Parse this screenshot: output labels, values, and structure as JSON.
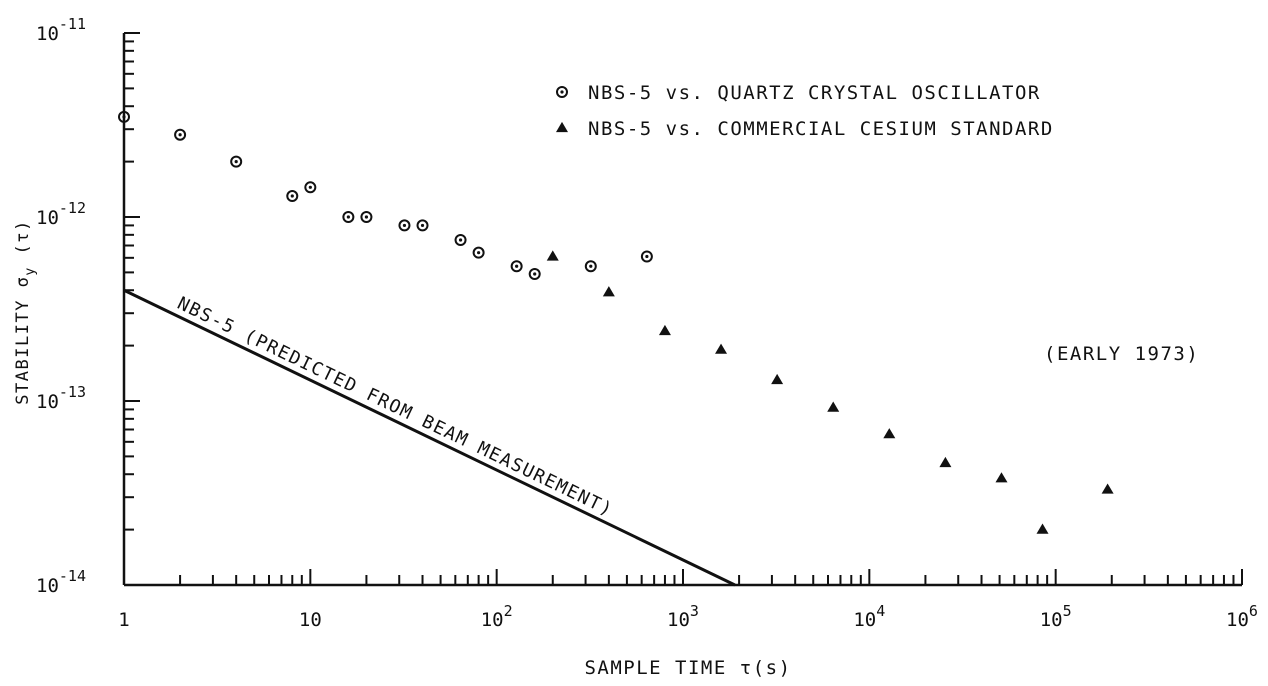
{
  "chart_data": {
    "type": "scatter",
    "title": "",
    "xlabel": "SAMPLE TIME τ(s)",
    "ylabel": "STABILITY σ",
    "ylabel_sub": "y",
    "ylabel_tail": " (τ)",
    "x_scale": "log",
    "y_scale": "log",
    "xlim": [
      1,
      1000000
    ],
    "ylim": [
      1e-14,
      1e-11
    ],
    "grid": false,
    "legend_position": "top-right",
    "x_tick_labels": [
      {
        "base": "1",
        "exp": ""
      },
      {
        "base": "10",
        "exp": ""
      },
      {
        "base": "10",
        "exp": "2"
      },
      {
        "base": "10",
        "exp": "3"
      },
      {
        "base": "10",
        "exp": "4"
      },
      {
        "base": "10",
        "exp": "5"
      },
      {
        "base": "10",
        "exp": "6"
      }
    ],
    "y_tick_labels": [
      {
        "base": "10",
        "exp": "-14"
      },
      {
        "base": "10",
        "exp": "-13"
      },
      {
        "base": "10",
        "exp": "-12"
      },
      {
        "base": "10",
        "exp": "-11"
      }
    ],
    "annotations": {
      "date_note": "(EARLY 1973)",
      "line_label": "NBS-5 (PREDICTED FROM BEAM MEASUREMENT)"
    },
    "series": [
      {
        "name": "NBS-5 vs. QUARTZ CRYSTAL OSCILLATOR",
        "marker": "circle-dot",
        "points": [
          [
            1,
            3.5e-12
          ],
          [
            2,
            2.8e-12
          ],
          [
            4,
            2e-12
          ],
          [
            8,
            1.3e-12
          ],
          [
            10,
            1.45e-12
          ],
          [
            16,
            1e-12
          ],
          [
            20,
            1e-12
          ],
          [
            32,
            9e-13
          ],
          [
            40,
            9e-13
          ],
          [
            64,
            7.5e-13
          ],
          [
            80,
            6.4e-13
          ],
          [
            128,
            5.4e-13
          ],
          [
            160,
            4.9e-13
          ],
          [
            320,
            5.4e-13
          ],
          [
            640,
            6.1e-13
          ]
        ]
      },
      {
        "name": "NBS-5 vs. COMMERCIAL CESIUM STANDARD",
        "marker": "triangle",
        "points": [
          [
            200,
            6.1e-13
          ],
          [
            400,
            3.9e-13
          ],
          [
            800,
            2.4e-13
          ],
          [
            1600,
            1.9e-13
          ],
          [
            3200,
            1.3e-13
          ],
          [
            6400,
            9.2e-14
          ],
          [
            12800,
            6.6e-14
          ],
          [
            25600,
            4.6e-14
          ],
          [
            51200,
            3.8e-14
          ],
          [
            85000,
            2e-14
          ],
          [
            190000,
            3.3e-14
          ]
        ]
      },
      {
        "name": "NBS-5 (PREDICTED FROM BEAM MEASUREMENT)",
        "marker": "line",
        "points": [
          [
            1,
            4e-13
          ],
          [
            1900,
            1e-14
          ]
        ]
      }
    ]
  }
}
